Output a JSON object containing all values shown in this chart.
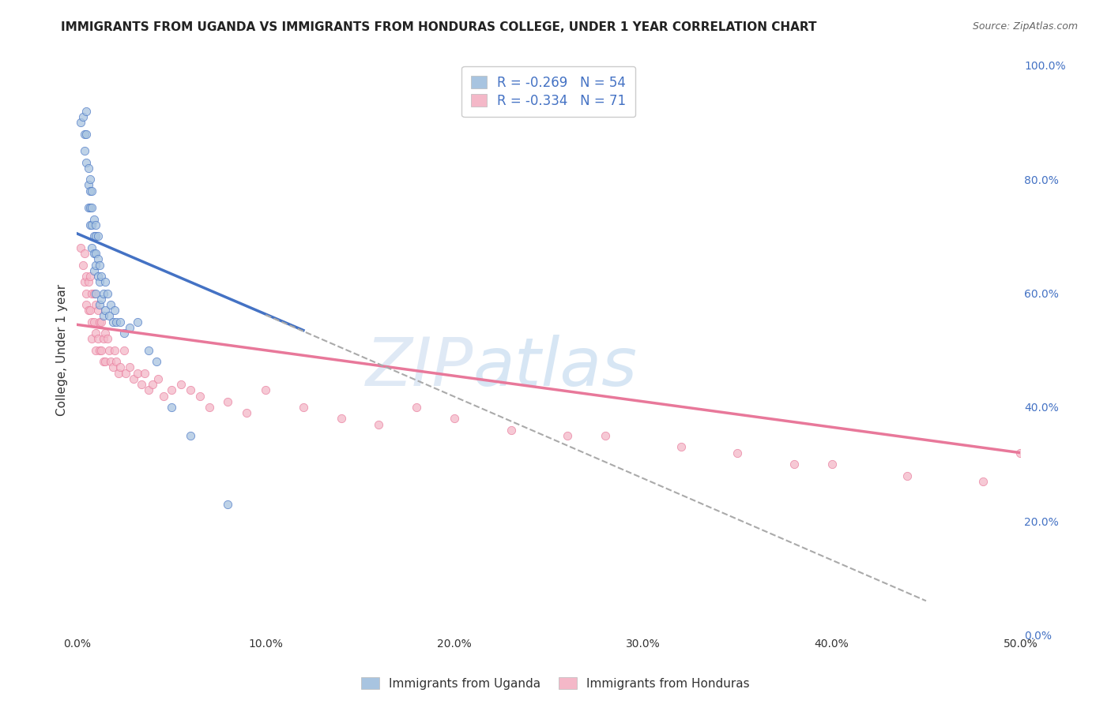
{
  "title": "IMMIGRANTS FROM UGANDA VS IMMIGRANTS FROM HONDURAS COLLEGE, UNDER 1 YEAR CORRELATION CHART",
  "source": "Source: ZipAtlas.com",
  "ylabel_left": "College, Under 1 year",
  "xlim": [
    0.0,
    0.5
  ],
  "ylim": [
    0.0,
    1.0
  ],
  "xticks": [
    0.0,
    0.1,
    0.2,
    0.3,
    0.4,
    0.5
  ],
  "xtick_labels": [
    "0.0%",
    "10.0%",
    "20.0%",
    "30.0%",
    "40.0%",
    "50.0%"
  ],
  "yticks_right": [
    0.0,
    0.2,
    0.4,
    0.6,
    0.8,
    1.0
  ],
  "ytick_labels_right": [
    "0.0%",
    "20.0%",
    "40.0%",
    "60.0%",
    "80.0%",
    "100.0%"
  ],
  "color_uganda": "#a8c4e0",
  "color_honduras": "#f4b8c8",
  "color_uganda_line": "#4472c4",
  "color_honduras_line": "#e8789a",
  "watermark_text": "ZIPatlas",
  "background_color": "#ffffff",
  "grid_color": "#cccccc",
  "R_uganda": -0.269,
  "N_uganda": 54,
  "R_honduras": -0.334,
  "N_honduras": 71,
  "uganda_scatter_x": [
    0.002,
    0.003,
    0.004,
    0.004,
    0.005,
    0.005,
    0.005,
    0.006,
    0.006,
    0.006,
    0.007,
    0.007,
    0.007,
    0.007,
    0.008,
    0.008,
    0.008,
    0.008,
    0.009,
    0.009,
    0.009,
    0.009,
    0.01,
    0.01,
    0.01,
    0.01,
    0.01,
    0.011,
    0.011,
    0.011,
    0.012,
    0.012,
    0.012,
    0.013,
    0.013,
    0.014,
    0.014,
    0.015,
    0.015,
    0.016,
    0.017,
    0.018,
    0.019,
    0.02,
    0.021,
    0.023,
    0.025,
    0.028,
    0.032,
    0.038,
    0.042,
    0.05,
    0.06,
    0.08
  ],
  "uganda_scatter_y": [
    0.9,
    0.91,
    0.88,
    0.85,
    0.92,
    0.88,
    0.83,
    0.82,
    0.79,
    0.75,
    0.8,
    0.78,
    0.75,
    0.72,
    0.78,
    0.75,
    0.72,
    0.68,
    0.73,
    0.7,
    0.67,
    0.64,
    0.72,
    0.7,
    0.67,
    0.65,
    0.6,
    0.7,
    0.66,
    0.63,
    0.65,
    0.62,
    0.58,
    0.63,
    0.59,
    0.6,
    0.56,
    0.62,
    0.57,
    0.6,
    0.56,
    0.58,
    0.55,
    0.57,
    0.55,
    0.55,
    0.53,
    0.54,
    0.55,
    0.5,
    0.48,
    0.4,
    0.35,
    0.23
  ],
  "honduras_scatter_x": [
    0.002,
    0.003,
    0.004,
    0.004,
    0.005,
    0.005,
    0.005,
    0.006,
    0.006,
    0.007,
    0.007,
    0.008,
    0.008,
    0.008,
    0.009,
    0.009,
    0.01,
    0.01,
    0.01,
    0.011,
    0.011,
    0.012,
    0.012,
    0.013,
    0.013,
    0.014,
    0.014,
    0.015,
    0.015,
    0.016,
    0.017,
    0.018,
    0.019,
    0.02,
    0.021,
    0.022,
    0.023,
    0.025,
    0.026,
    0.028,
    0.03,
    0.032,
    0.034,
    0.036,
    0.038,
    0.04,
    0.043,
    0.046,
    0.05,
    0.055,
    0.06,
    0.065,
    0.07,
    0.08,
    0.09,
    0.1,
    0.12,
    0.14,
    0.16,
    0.18,
    0.2,
    0.23,
    0.26,
    0.28,
    0.32,
    0.35,
    0.38,
    0.4,
    0.44,
    0.48,
    0.5
  ],
  "honduras_scatter_y": [
    0.68,
    0.65,
    0.62,
    0.67,
    0.6,
    0.63,
    0.58,
    0.62,
    0.57,
    0.63,
    0.57,
    0.6,
    0.55,
    0.52,
    0.6,
    0.55,
    0.58,
    0.53,
    0.5,
    0.57,
    0.52,
    0.55,
    0.5,
    0.55,
    0.5,
    0.52,
    0.48,
    0.53,
    0.48,
    0.52,
    0.5,
    0.48,
    0.47,
    0.5,
    0.48,
    0.46,
    0.47,
    0.5,
    0.46,
    0.47,
    0.45,
    0.46,
    0.44,
    0.46,
    0.43,
    0.44,
    0.45,
    0.42,
    0.43,
    0.44,
    0.43,
    0.42,
    0.4,
    0.41,
    0.39,
    0.43,
    0.4,
    0.38,
    0.37,
    0.4,
    0.38,
    0.36,
    0.35,
    0.35,
    0.33,
    0.32,
    0.3,
    0.3,
    0.28,
    0.27,
    0.32
  ],
  "uganda_line_x0": 0.0,
  "uganda_line_y0": 0.705,
  "uganda_line_x1": 0.12,
  "uganda_line_y1": 0.535,
  "honduras_line_x0": 0.0,
  "honduras_line_y0": 0.545,
  "honduras_line_x1": 0.5,
  "honduras_line_y1": 0.32,
  "dash_line_x0": 0.1,
  "dash_line_y0": 0.562,
  "dash_line_x1": 0.45,
  "dash_line_y1": 0.06,
  "title_fontsize": 11,
  "axis_label_fontsize": 11,
  "tick_fontsize": 10,
  "legend_fontsize": 12,
  "source_fontsize": 9
}
